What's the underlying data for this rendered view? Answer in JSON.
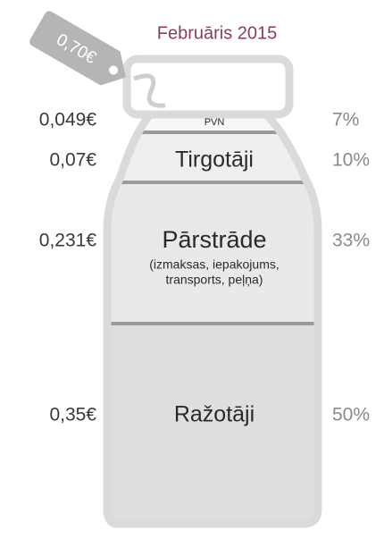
{
  "title": "Februāris 2015",
  "price_tag": "0,70€",
  "segments": [
    {
      "label": "PVN",
      "amount": "0,049€",
      "share": "7%"
    },
    {
      "label": "Tirgotāji",
      "amount": "0,07€",
      "share": "10%"
    },
    {
      "label": "Pārstrāde",
      "note_lines": [
        "(izmaksas, iepakojums,",
        "transports, peļņa)"
      ],
      "amount": "0,231€",
      "share": "33%"
    },
    {
      "label": "Ražotāji",
      "amount": "0,35€",
      "share": "50%"
    }
  ]
}
